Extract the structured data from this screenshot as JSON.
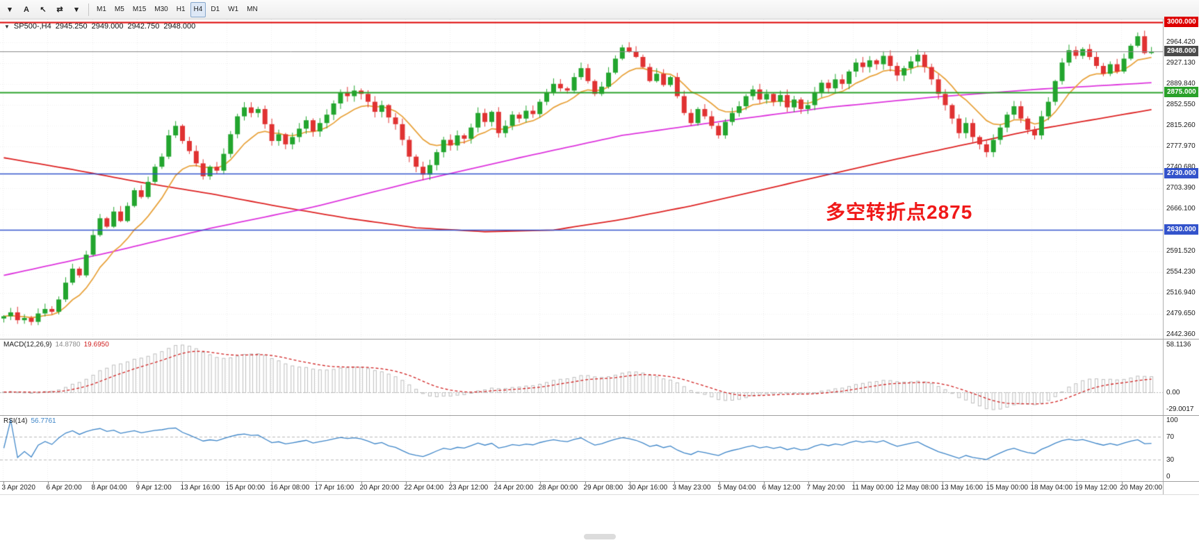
{
  "toolbar": {
    "tools": [
      {
        "id": "charts-menu",
        "glyph": "▾"
      },
      {
        "id": "text-label-tool",
        "glyph": "A"
      },
      {
        "id": "cursor-tool",
        "glyph": "↖"
      },
      {
        "id": "refresh-symbols-tool",
        "glyph": "⇄"
      },
      {
        "id": "refresh-menu",
        "glyph": "▾"
      }
    ],
    "timeframes": [
      "M1",
      "M5",
      "M15",
      "M30",
      "H1",
      "H4",
      "D1",
      "W1",
      "MN"
    ],
    "selected_timeframe": "H4"
  },
  "chart_data": {
    "type": "candlestick",
    "symbol": "SP500-",
    "timeframe": "H4",
    "symbol_period_label": "SP500-,H4",
    "ohlc_current": {
      "open": "2945.250",
      "high": "2949.000",
      "low": "2942.750",
      "close": "2948.000"
    },
    "y_range": [
      2436,
      3005
    ],
    "price_axis_ticks": [
      "2964.420",
      "2927.130",
      "2889.840",
      "2852.550",
      "2815.260",
      "2777.970",
      "2740.680",
      "2703.390",
      "2666.100",
      "2628.810",
      "2591.520",
      "2554.230",
      "2516.940",
      "2479.650",
      "2442.360"
    ],
    "time_axis_ticks": [
      "3 Apr 2020",
      "6 Apr 20:00",
      "8 Apr 04:00",
      "9 Apr 12:00",
      "13 Apr 16:00",
      "15 Apr 00:00",
      "16 Apr 08:00",
      "17 Apr 16:00",
      "20 Apr 20:00",
      "22 Apr 04:00",
      "23 Apr 12:00",
      "24 Apr 20:00",
      "28 Apr 00:00",
      "29 Apr 08:00",
      "30 Apr 16:00",
      "3 May 23:00",
      "5 May 04:00",
      "6 May 12:00",
      "7 May 20:00",
      "11 May 00:00",
      "12 May 08:00",
      "13 May 16:00",
      "15 May 00:00",
      "18 May 04:00",
      "19 May 12:00",
      "20 May 20:00"
    ],
    "closes": [
      2475,
      2482,
      2468,
      2472,
      2465,
      2480,
      2488,
      2483,
      2505,
      2535,
      2560,
      2548,
      2585,
      2620,
      2650,
      2635,
      2662,
      2645,
      2672,
      2700,
      2688,
      2715,
      2742,
      2760,
      2798,
      2815,
      2788,
      2770,
      2748,
      2725,
      2742,
      2735,
      2765,
      2800,
      2832,
      2848,
      2838,
      2845,
      2818,
      2788,
      2800,
      2782,
      2795,
      2810,
      2825,
      2805,
      2820,
      2835,
      2855,
      2875,
      2868,
      2878,
      2872,
      2858,
      2840,
      2852,
      2830,
      2818,
      2790,
      2760,
      2742,
      2728,
      2745,
      2768,
      2790,
      2780,
      2798,
      2792,
      2812,
      2838,
      2822,
      2840,
      2802,
      2815,
      2835,
      2828,
      2842,
      2836,
      2858,
      2875,
      2890,
      2882,
      2878,
      2902,
      2918,
      2895,
      2872,
      2885,
      2910,
      2935,
      2955,
      2948,
      2938,
      2920,
      2895,
      2908,
      2888,
      2902,
      2868,
      2838,
      2820,
      2845,
      2832,
      2815,
      2798,
      2822,
      2838,
      2850,
      2868,
      2880,
      2862,
      2872,
      2858,
      2870,
      2848,
      2862,
      2845,
      2852,
      2875,
      2892,
      2882,
      2898,
      2890,
      2912,
      2928,
      2920,
      2932,
      2925,
      2940,
      2922,
      2905,
      2918,
      2930,
      2942,
      2920,
      2898,
      2872,
      2852,
      2828,
      2802,
      2820,
      2795,
      2782,
      2768,
      2790,
      2812,
      2835,
      2850,
      2828,
      2808,
      2798,
      2832,
      2858,
      2895,
      2928,
      2950,
      2940,
      2952,
      2938,
      2922,
      2908,
      2925,
      2912,
      2935,
      2958,
      2975,
      2945,
      2948
    ],
    "horizontal_lines": [
      {
        "price": 3000,
        "label": "3000.000",
        "color": "#dd0000",
        "width": 2
      },
      {
        "price": 2875,
        "label": "2875.000",
        "color": "#2aa12a",
        "width": 2
      },
      {
        "price": 2730,
        "label": "2730.000",
        "color": "#3353cb",
        "width": 1.6
      },
      {
        "price": 2630,
        "label": "2630.000",
        "color": "#3353cb",
        "width": 1.6
      }
    ],
    "current_price": {
      "value": 2948,
      "label": "2948.000",
      "badge_color": "#4a4a4a",
      "line_color": "#8a8a8a"
    },
    "moving_averages": {
      "fast_ema_period": 10,
      "medium_points": [
        [
          0,
          2548
        ],
        [
          15,
          2588
        ],
        [
          30,
          2632
        ],
        [
          45,
          2670
        ],
        [
          60,
          2716
        ],
        [
          75,
          2758
        ],
        [
          90,
          2798
        ],
        [
          105,
          2824
        ],
        [
          120,
          2848
        ],
        [
          135,
          2866
        ],
        [
          150,
          2880
        ],
        [
          167,
          2892
        ]
      ],
      "slow_points": [
        [
          0,
          2758
        ],
        [
          10,
          2737
        ],
        [
          20,
          2714
        ],
        [
          30,
          2694
        ],
        [
          40,
          2671
        ],
        [
          50,
          2650
        ],
        [
          60,
          2633
        ],
        [
          70,
          2626
        ],
        [
          80,
          2629
        ],
        [
          90,
          2648
        ],
        [
          100,
          2672
        ],
        [
          110,
          2700
        ],
        [
          120,
          2728
        ],
        [
          130,
          2756
        ],
        [
          140,
          2782
        ],
        [
          150,
          2808
        ],
        [
          167,
          2844
        ]
      ]
    },
    "annotation": {
      "text": "多空转折点2875",
      "color": "#f01818"
    },
    "indicators": {
      "macd": {
        "title": "MACD(12,26,9)",
        "main_value": "14.8780",
        "signal_value": "19.6950",
        "fast": 12,
        "slow": 26,
        "signal": 9,
        "axis_labels": [
          "58.1136",
          "0.00",
          "-29.0017"
        ]
      },
      "rsi": {
        "title": "RSI(14)",
        "value": "56.7761",
        "period": 14,
        "levels": [
          70,
          30
        ],
        "axis_labels": [
          "100",
          "70",
          "30",
          "0"
        ]
      }
    },
    "colors": {
      "up_candle": "#22a52e",
      "down_candle": "#e03232",
      "ma_fast": "#e8a33d",
      "ma_medium": "#dd33dd",
      "ma_slow": "#dd2222",
      "macd_histogram": "#bdbdbd",
      "macd_signal": "#d02020",
      "rsi_line": "#3d85c8",
      "grid": "#ebebeb"
    }
  }
}
